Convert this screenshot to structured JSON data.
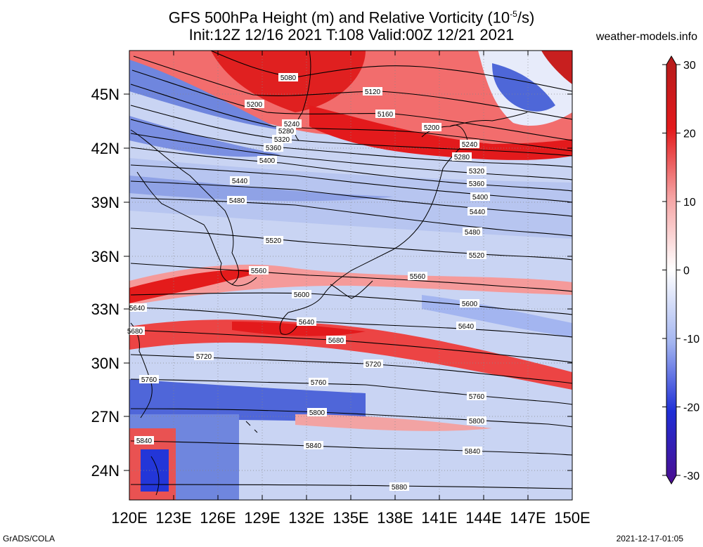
{
  "title_line1": "GFS 500hPa Height (m) and Relative Vorticity (10",
  "title_sup": "-5",
  "title_line1_end": "/s)",
  "title_line2": "Init:12Z 12/16 2021 T:108 Valid:00Z 12/21 2021",
  "site": "weather-models.info",
  "footer_left": "GrADS/COLA",
  "footer_right": "2021-12-17-01:05",
  "lon_labels": [
    "120E",
    "123E",
    "126E",
    "129E",
    "132E",
    "135E",
    "138E",
    "141E",
    "144E",
    "147E",
    "150E"
  ],
  "lat_labels": [
    "45N",
    "42N",
    "39N",
    "36N",
    "33N",
    "30N",
    "27N",
    "24N"
  ],
  "colorbar": {
    "ticks": [
      "30",
      "20",
      "10",
      "0",
      "-10",
      "-20",
      "-30"
    ],
    "colors": {
      "p30": "#b31b1b",
      "p20": "#e31a1c",
      "p10": "#f5a3a3",
      "zero": "#ffffff",
      "n10": "#a3b5f0",
      "n20": "#1f2fd6",
      "n30": "#4b0d8f"
    }
  },
  "contour_labels": [
    "5080",
    "5120",
    "5160",
    "5200",
    "5240",
    "5280",
    "5320",
    "5360",
    "5400",
    "5440",
    "5480",
    "5520",
    "5560",
    "5600",
    "5640",
    "5680",
    "5720",
    "5760",
    "5800",
    "5840",
    "5880"
  ]
}
